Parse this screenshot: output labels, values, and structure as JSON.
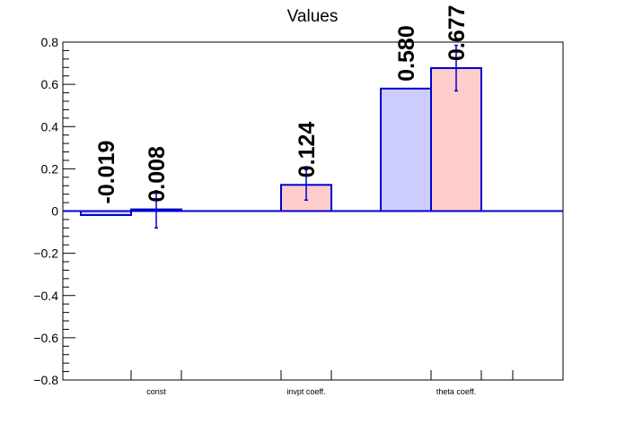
{
  "chart_data": {
    "type": "bar",
    "title": "Values",
    "categories": [
      "const",
      "invpt coeff.",
      "theta coeff."
    ],
    "series": [
      {
        "values": [
          -0.019,
          0.0,
          0.58
        ],
        "errors": [
          0.0,
          0.0,
          0.0
        ],
        "labels": [
          "-0.019",
          "",
          "0.580"
        ],
        "fill": "#ccccff",
        "stroke": "#0000cc"
      },
      {
        "values": [
          0.008,
          0.124,
          0.677
        ],
        "errors": [
          0.088,
          0.072,
          0.108
        ],
        "labels": [
          "0.008",
          "0.124",
          "0.677"
        ],
        "fill": "#ffcccc",
        "stroke": "#0000cc"
      }
    ],
    "ylim": [
      -0.8,
      0.8
    ],
    "y_ticks": [
      -0.8,
      -0.6,
      -0.4,
      -0.2,
      0,
      0.2,
      0.4,
      0.6,
      0.8
    ],
    "y_tick_labels": [
      "−0.8",
      "−0.6",
      "−0.4",
      "−0.2",
      "0",
      "0.2",
      "0.4",
      "0.6",
      "0.8"
    ],
    "zero_line_color": "#0000cc",
    "grid": false,
    "legend": "none"
  }
}
